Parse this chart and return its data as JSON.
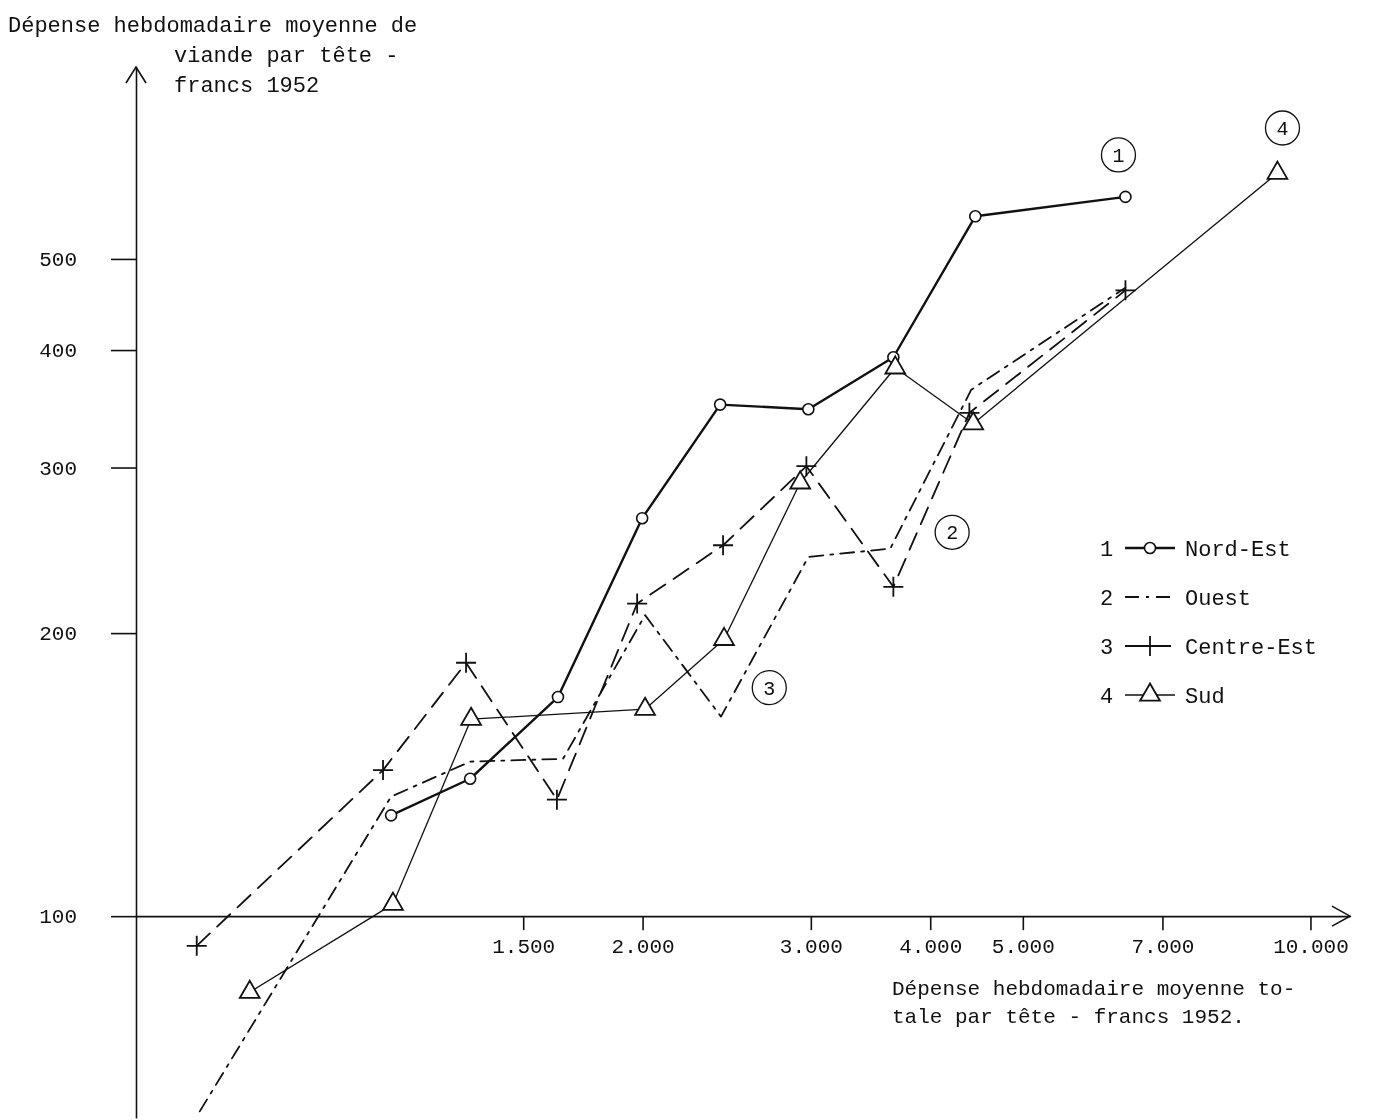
{
  "chart_data": {
    "type": "line",
    "ylabel": "Dépense hebdomadaire moyenne de\nviande par tête -\nfrancs 1952",
    "xlabel": "Dépense hebdomadaire moyenne to-\ntale par tête - francs 1952.",
    "log": "xy",
    "grid": false,
    "legend": "right",
    "xlim": [
      590,
      11000
    ],
    "ylim": [
      61,
      800
    ],
    "xticks": [
      {
        "value": 1500,
        "label": "1.500"
      },
      {
        "value": 2000,
        "label": "2.000"
      },
      {
        "value": 3000,
        "label": "3.000"
      },
      {
        "value": 4000,
        "label": "4.000"
      },
      {
        "value": 5000,
        "label": "5.000"
      },
      {
        "value": 7000,
        "label": "7.000"
      },
      {
        "value": 10000,
        "label": "10.000"
      }
    ],
    "yticks": [
      100,
      200,
      300,
      400,
      500
    ],
    "series": [
      {
        "name": "Nord-Est",
        "color": "#111111",
        "marker": "circle",
        "line_style": "solid",
        "x": [
          1091,
          1320,
          1631,
          1998,
          2411,
          2982,
          3660,
          4459,
          6403
        ],
        "values": [
          128,
          140,
          171,
          265,
          350,
          346,
          393,
          555,
          582
        ]
      },
      {
        "name": "Ouest",
        "color": "#111111",
        "marker": "none",
        "line_style": "dashdot",
        "x": [
          688,
          1091,
          1320,
          1651,
          2012,
          2416,
          2982,
          3633,
          4416,
          6403
        ],
        "values": [
          62,
          134,
          146,
          147,
          209,
          163,
          241,
          246,
          363,
          466
        ]
      },
      {
        "name": "Centre-Est",
        "color": "#111111",
        "marker": "cross",
        "line_style": "dashed",
        "x": [
          683,
          1070,
          1307,
          1627,
          1974,
          2428,
          2968,
          3660,
          4396,
          6403
        ],
        "values": [
          93,
          143,
          186,
          133,
          215,
          248,
          301,
          224,
          343,
          463
        ]
      },
      {
        "name": "Sud",
        "color": "#111111",
        "marker": "triangle",
        "line_style": "solid",
        "x": [
          776,
          1096,
          1323,
          2012,
          2434,
          2924,
          3677,
          4437,
          9235
        ],
        "values": [
          83,
          103,
          162,
          166,
          197,
          289,
          383,
          334,
          617
        ]
      }
    ],
    "annotations": [
      {
        "text": "1",
        "x": 6296,
        "y": 645
      },
      {
        "text": "2",
        "x": 4217,
        "y": 256
      },
      {
        "text": "3",
        "x": 2714,
        "y": 175
      },
      {
        "text": "4",
        "x": 9348,
        "y": 689
      }
    ]
  }
}
